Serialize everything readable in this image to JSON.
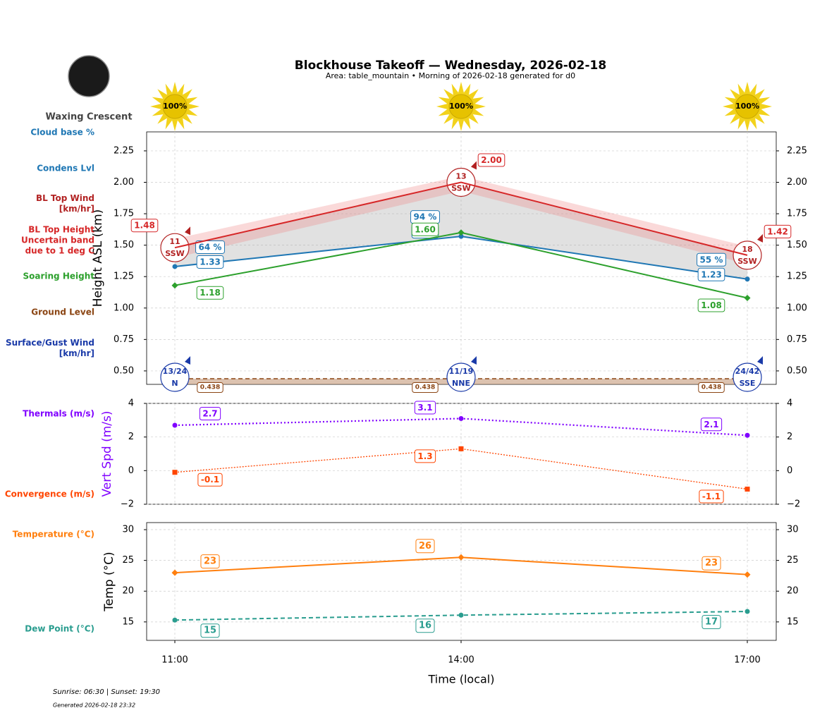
{
  "title": "Blockhouse Takeoff — Wednesday, 2026-02-18",
  "subtitle": "Area: table_mountain • Morning of 2026-02-18 generated for d0",
  "moon": {
    "phase": "Waxing Crescent"
  },
  "sun": {
    "values": [
      100,
      100,
      100
    ],
    "value_labels": [
      "100%",
      "100%",
      "100%"
    ]
  },
  "footer": {
    "sun_times": "Sunrise: 06:30 | Sunset: 19:30",
    "generated": "Generated 2026-02-18 23:32"
  },
  "chart_data": [
    {
      "type": "line",
      "ylabel": "Height ASL (km)",
      "ylabel_color": "#000000",
      "ylim": [
        0.393,
        2.401
      ],
      "grid": true,
      "yticks": [
        {
          "value": 0.5,
          "label": "0.50"
        },
        {
          "value": 0.75,
          "label": "0.75"
        },
        {
          "value": 1.0,
          "label": "1.00"
        },
        {
          "value": 1.25,
          "label": "1.25"
        },
        {
          "value": 1.5,
          "label": "1.50"
        },
        {
          "value": 1.75,
          "label": "1.75"
        },
        {
          "value": 2.0,
          "label": "2.00"
        },
        {
          "value": 2.25,
          "label": "2.25"
        }
      ],
      "series": [
        {
          "name": "Cloud base %",
          "color": "#1f77b4",
          "style": "labels",
          "values": [
            64,
            94,
            55
          ],
          "value_labels": [
            "64 %",
            "94 %",
            "55 %"
          ]
        },
        {
          "name": "Condens Lvl",
          "color": "#1f77b4",
          "style": "line",
          "marker": "circle",
          "linestyle": "solid",
          "values": [
            1.33,
            1.57,
            1.23
          ]
        },
        {
          "name": "BL Top Wind\n[km/hr]",
          "color": "#b22222",
          "style": "wind",
          "values": [
            11,
            13,
            18
          ],
          "directions": [
            "SSW",
            "SSW",
            "SSW"
          ]
        },
        {
          "name": "BL Top Height\nUncertain band\ndue to 1 deg C",
          "color": "#d62728",
          "style": "line-band",
          "linestyle": "solid",
          "values": [
            1.48,
            2.0,
            1.42
          ],
          "value_labels": [
            "1.48",
            "2.00",
            "1.42"
          ],
          "band_low": [
            1.4,
            1.93,
            1.35
          ],
          "band_high": [
            1.55,
            2.05,
            1.49
          ]
        },
        {
          "name": "Soaring Height",
          "color": "#2ca02c",
          "style": "line",
          "marker": "diamond",
          "linestyle": "solid",
          "values": [
            1.18,
            1.6,
            1.08
          ],
          "value_labels": [
            "1.18",
            "1.60",
            "1.08"
          ]
        },
        {
          "name": "Ground Level",
          "color": "#8b4513",
          "style": "ground",
          "linestyle": "dashed",
          "values": [
            0.438,
            0.438,
            0.438
          ]
        },
        {
          "name": "Surface/Gust Wind\n[km/hr]",
          "color": "#1a3aa8",
          "style": "wind-ground",
          "values": [
            13,
            11,
            24
          ],
          "gusts": [
            24,
            19,
            42
          ],
          "value_labels": [
            "13/24",
            "11/19",
            "24/42"
          ],
          "directions": [
            "N",
            "NNE",
            "SSE"
          ]
        }
      ]
    },
    {
      "type": "line",
      "ylabel": "Vert Spd (m/s)",
      "ylabel_color": "#8000ff",
      "ylim": [
        -2,
        4
      ],
      "grid": true,
      "yticks": [
        {
          "value": -2,
          "label": "−2"
        },
        0,
        2,
        4
      ],
      "series": [
        {
          "name": "Thermals (m/s)",
          "color": "#8000ff",
          "style": "line",
          "marker": "circle",
          "linestyle": "dotted",
          "values": [
            2.7,
            3.1,
            2.1
          ]
        },
        {
          "name": "Convergence (m/s)",
          "color": "#ff4500",
          "style": "line",
          "marker": "square",
          "linestyle": "dotted-thin",
          "values": [
            -0.1,
            1.3,
            -1.1
          ]
        }
      ]
    },
    {
      "type": "line",
      "ylabel": "Temp (°C)",
      "ylabel_color": "#000000",
      "ylim": [
        12,
        31.15
      ],
      "grid": true,
      "yticks": [
        15,
        20,
        25,
        30
      ],
      "categories": [
        "11:00",
        "14:00",
        "17:00"
      ],
      "xlabel": "Time (local)",
      "series": [
        {
          "name": "Temperature (°C)",
          "color": "#ff7f0e",
          "style": "line",
          "marker": "diamond",
          "linestyle": "solid",
          "values": [
            23.0,
            25.5,
            22.7
          ],
          "value_labels": [
            "23",
            "26",
            "23"
          ]
        },
        {
          "name": "Dew Point (°C)",
          "color": "#2a9d8f",
          "style": "line",
          "marker": "circle",
          "linestyle": "dashed",
          "values": [
            15.3,
            16.1,
            16.7
          ],
          "value_labels": [
            "15",
            "16",
            "17"
          ]
        }
      ]
    }
  ]
}
